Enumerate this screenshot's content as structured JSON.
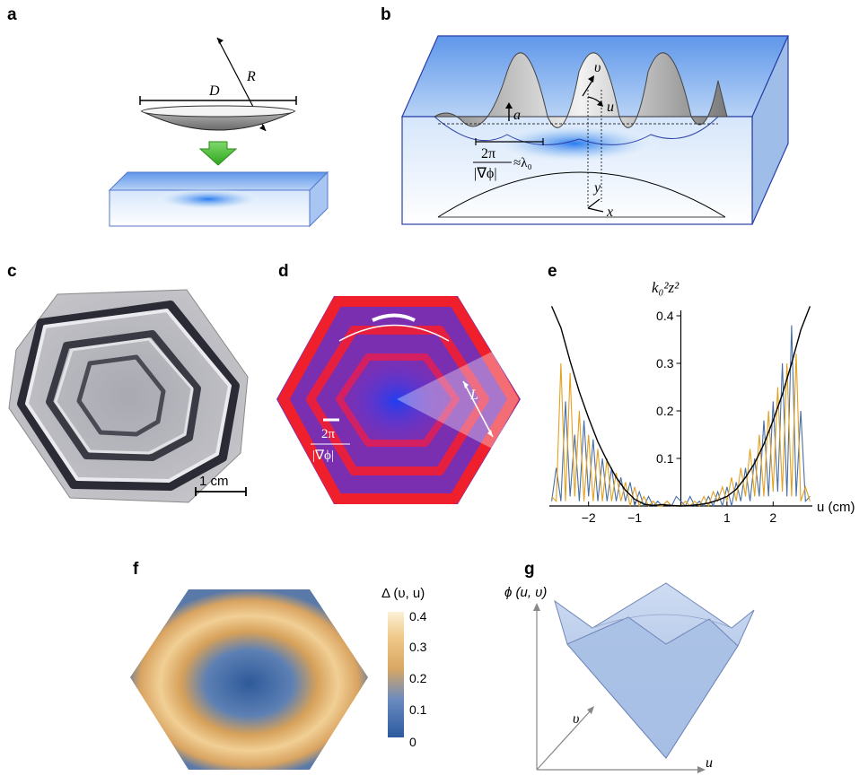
{
  "panels": {
    "a": {
      "label": "a",
      "D": "D",
      "R": "R"
    },
    "b": {
      "label": "b",
      "a": "a",
      "v": "υ",
      "u": "u",
      "y": "y",
      "x": "x",
      "wavelength_num": "2π",
      "wavelength_den": "|∇ϕ|",
      "wavelength_approx": "≈λ₀"
    },
    "c": {
      "label": "c",
      "scale_bar": "1 cm"
    },
    "d": {
      "label": "d",
      "L": "L",
      "frac_num": "2π",
      "frac_den": "|∇ϕ|"
    },
    "e": {
      "label": "e",
      "ylabel": "k₀²z²",
      "xlabel": "u (cm)"
    },
    "f": {
      "label": "f",
      "colorbar_title": "Δ (υ, u)",
      "colorbar_ticks": [
        "0.4",
        "0.3",
        "0.2",
        "0.1",
        "0"
      ]
    },
    "g": {
      "label": "g",
      "zlabel": "ϕ (u, υ)",
      "v_axis": "υ",
      "u_axis": "u"
    }
  },
  "chart_data": {
    "type": "line",
    "title": "",
    "xlabel": "u (cm)",
    "ylabel": "k₀²z²",
    "xlim": [
      -2.85,
      2.85
    ],
    "ylim": [
      0,
      0.4
    ],
    "xticks": [
      -2,
      -1,
      1,
      2
    ],
    "yticks": [
      0.1,
      0.2,
      0.3,
      0.4
    ],
    "series": [
      {
        "color": "#4a6fa5",
        "x": [
          -2.8,
          -2.7,
          -2.6,
          -2.5,
          -2.4,
          -2.3,
          -2.2,
          -2.1,
          -2.0,
          -1.9,
          -1.8,
          -1.7,
          -1.6,
          -1.5,
          -1.4,
          -1.3,
          -1.2,
          -1.1,
          -1.0,
          -0.9,
          -0.8,
          -0.7,
          -0.6,
          -0.5,
          -0.4,
          -0.3,
          -0.2,
          -0.1,
          0.0,
          0.1,
          0.2,
          0.3,
          0.4,
          0.5,
          0.6,
          0.7,
          0.8,
          0.9,
          1.0,
          1.1,
          1.2,
          1.3,
          1.4,
          1.5,
          1.6,
          1.7,
          1.8,
          1.9,
          2.0,
          2.1,
          2.2,
          2.3,
          2.4,
          2.5,
          2.6,
          2.7,
          2.8
        ],
        "y": [
          0.01,
          0.08,
          0.01,
          0.22,
          0.02,
          0.15,
          0.01,
          0.18,
          0.02,
          0.14,
          0.01,
          0.1,
          0.01,
          0.08,
          0.01,
          0.06,
          0.01,
          0.05,
          0.0,
          0.03,
          0.0,
          0.02,
          0.0,
          0.01,
          0.0,
          0.01,
          0.0,
          0.02,
          0.01,
          0.0,
          0.02,
          0.0,
          0.01,
          0.0,
          0.02,
          0.0,
          0.03,
          0.0,
          0.04,
          0.0,
          0.05,
          0.01,
          0.08,
          0.01,
          0.1,
          0.02,
          0.18,
          0.02,
          0.22,
          0.03,
          0.3,
          0.02,
          0.38,
          0.02,
          0.2,
          0.01,
          0.02
        ]
      },
      {
        "color": "#e3a11f",
        "x": [
          -2.8,
          -2.7,
          -2.6,
          -2.5,
          -2.4,
          -2.3,
          -2.2,
          -2.1,
          -2.0,
          -1.9,
          -1.8,
          -1.7,
          -1.6,
          -1.5,
          -1.4,
          -1.3,
          -1.2,
          -1.1,
          -1.0,
          -0.9,
          -0.8,
          -0.7,
          -0.6,
          -0.5,
          -0.4,
          -0.3,
          -0.2,
          -0.1,
          0.0,
          0.1,
          0.2,
          0.3,
          0.4,
          0.5,
          0.6,
          0.7,
          0.8,
          0.9,
          1.0,
          1.1,
          1.2,
          1.3,
          1.4,
          1.5,
          1.6,
          1.7,
          1.8,
          1.9,
          2.0,
          2.1,
          2.2,
          2.3,
          2.4,
          2.5,
          2.6,
          2.7,
          2.8
        ],
        "y": [
          0.02,
          0.01,
          0.3,
          0.01,
          0.28,
          0.02,
          0.2,
          0.01,
          0.15,
          0.01,
          0.12,
          0.01,
          0.1,
          0.01,
          0.07,
          0.01,
          0.05,
          0.0,
          0.04,
          0.0,
          0.02,
          0.0,
          0.01,
          0.0,
          0.0,
          0.01,
          0.0,
          0.0,
          0.0,
          0.01,
          0.0,
          0.01,
          0.0,
          0.02,
          0.0,
          0.03,
          0.01,
          0.04,
          0.01,
          0.06,
          0.01,
          0.08,
          0.02,
          0.12,
          0.02,
          0.15,
          0.02,
          0.2,
          0.03,
          0.25,
          0.03,
          0.3,
          0.02,
          0.32,
          0.01,
          0.04,
          0.01
        ]
      },
      {
        "color": "#000000",
        "x": [
          -2.8,
          -2.6,
          -2.4,
          -2.2,
          -2.0,
          -1.8,
          -1.6,
          -1.4,
          -1.2,
          -1.0,
          -0.8,
          -0.6,
          -0.4,
          -0.2,
          0.0,
          0.2,
          0.4,
          0.6,
          0.8,
          1.0,
          1.2,
          1.4,
          1.6,
          1.8,
          2.0,
          2.2,
          2.4,
          2.6,
          2.8
        ],
        "y": [
          0.45,
          0.375,
          0.305,
          0.24,
          0.185,
          0.135,
          0.095,
          0.06,
          0.033,
          0.014,
          0.004,
          0.001,
          0.003,
          0.001,
          0.0,
          0.001,
          0.003,
          0.006,
          0.012,
          0.02,
          0.035,
          0.06,
          0.09,
          0.13,
          0.18,
          0.235,
          0.3,
          0.37,
          0.45
        ]
      }
    ]
  }
}
